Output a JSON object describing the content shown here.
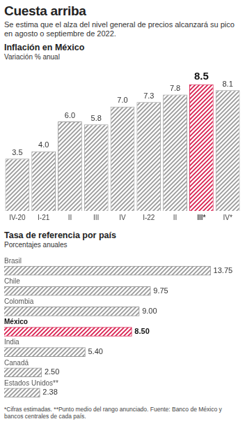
{
  "title": "Cuesta arriba",
  "subtitle": "Se estima que el alza del nivel general de precios alcanzará su pico en agosto o septiembre de 2022.",
  "chart_data": [
    {
      "type": "bar",
      "title": "Inflación en México",
      "subtitle": "Variación % anual",
      "categories": [
        "IV-20",
        "I-21",
        "II",
        "III",
        "IV",
        "I-22",
        "II",
        "III*",
        "IV*"
      ],
      "values": [
        3.5,
        4.0,
        6.0,
        5.8,
        7.0,
        7.3,
        7.8,
        8.5,
        8.1
      ],
      "value_labels": [
        "3.5",
        "4.0",
        "6.0",
        "5.8",
        "7.0",
        "7.3",
        "7.8",
        "8.5",
        "8.1"
      ],
      "colors": [
        "#9a9a9a",
        "#9a9a9a",
        "#9a9a9a",
        "#9a9a9a",
        "#9a9a9a",
        "#9a9a9a",
        "#9a9a9a",
        "#d81f4f",
        "#9a9a9a"
      ],
      "data_labels": true,
      "tick_labels": "x",
      "grid": false
    },
    {
      "type": "bar",
      "title": "Tasa de referencia por país",
      "subtitle": "Porcentajes anuales",
      "orientation": "horizontal",
      "categories": [
        "Brasil",
        "Chile",
        "Colombia",
        "México",
        "India",
        "Canadá",
        "Estados Unidos**"
      ],
      "values": [
        13.75,
        9.75,
        9.0,
        8.5,
        5.4,
        2.5,
        2.38
      ],
      "value_labels": [
        "13.75",
        "9.75",
        "9.00",
        "8.50",
        "5.40",
        "2.50",
        "2.38"
      ],
      "colors": [
        "#9a9a9a",
        "#9a9a9a",
        "#9a9a9a",
        "#d81f4f",
        "#9a9a9a",
        "#9a9a9a",
        "#9a9a9a"
      ],
      "data_labels": true,
      "tick_labels": false,
      "grid": false
    }
  ],
  "note": "*Cifras estimadas. **Punto medio del rango anunciado. Fuente: Banco de México y bancos centrales de cada país."
}
